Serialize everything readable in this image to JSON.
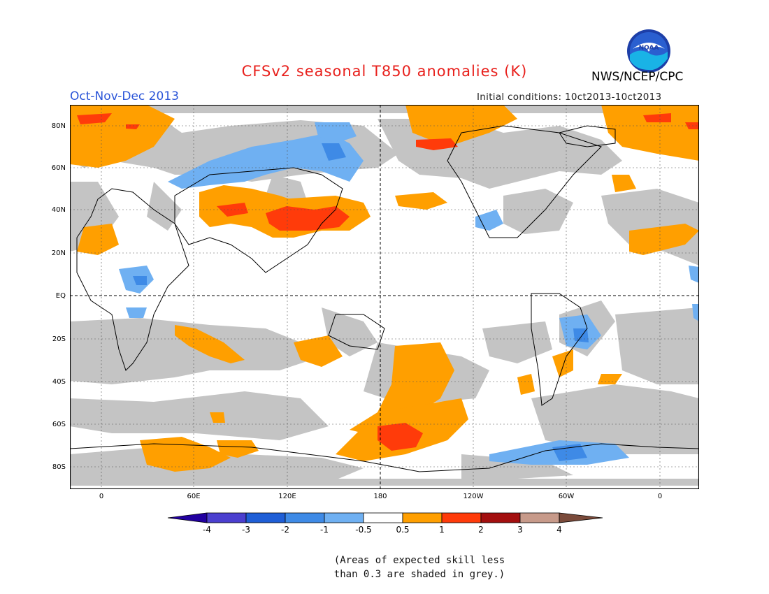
{
  "title": "CFSv2 seasonal T850 anomalies (K)",
  "agency": "NWS/NCEP/CPC",
  "logo_text": "NOAA",
  "season": "Oct-Nov-Dec 2013",
  "initial_conditions": "Initial conditions: 10ct2013-10ct2013",
  "note_line1": "(Areas of expected skill less",
  "note_line2": "than 0.3 are shaded in grey.)",
  "map": {
    "lat_labels": [
      "80N",
      "60N",
      "40N",
      "20N",
      "EQ",
      "20S",
      "40S",
      "60S",
      "80S"
    ],
    "lon_labels": [
      "0",
      "60E",
      "120E",
      "180",
      "120W",
      "60W",
      "0"
    ],
    "colors": {
      "grey": "#c4c4c4",
      "warm_05_1": "#ff9f00",
      "warm_1_2": "#ff3b0a",
      "cool_m05_m1": "#6fb0f2",
      "cool_m1_m2": "#3e8ae6",
      "background": "#ffffff"
    }
  },
  "colorbar": {
    "labels": [
      "-4",
      "-3",
      "-2",
      "-1",
      "-0.5",
      "0.5",
      "1",
      "2",
      "3",
      "4"
    ],
    "colors": [
      "#2200a0",
      "#4b3fcf",
      "#1f5ed6",
      "#3e8ae6",
      "#6fb0f2",
      "#ffffff",
      "#ff9f00",
      "#ff3b0a",
      "#a30f0f",
      "#c79a8a",
      "#7a4a3a"
    ]
  }
}
